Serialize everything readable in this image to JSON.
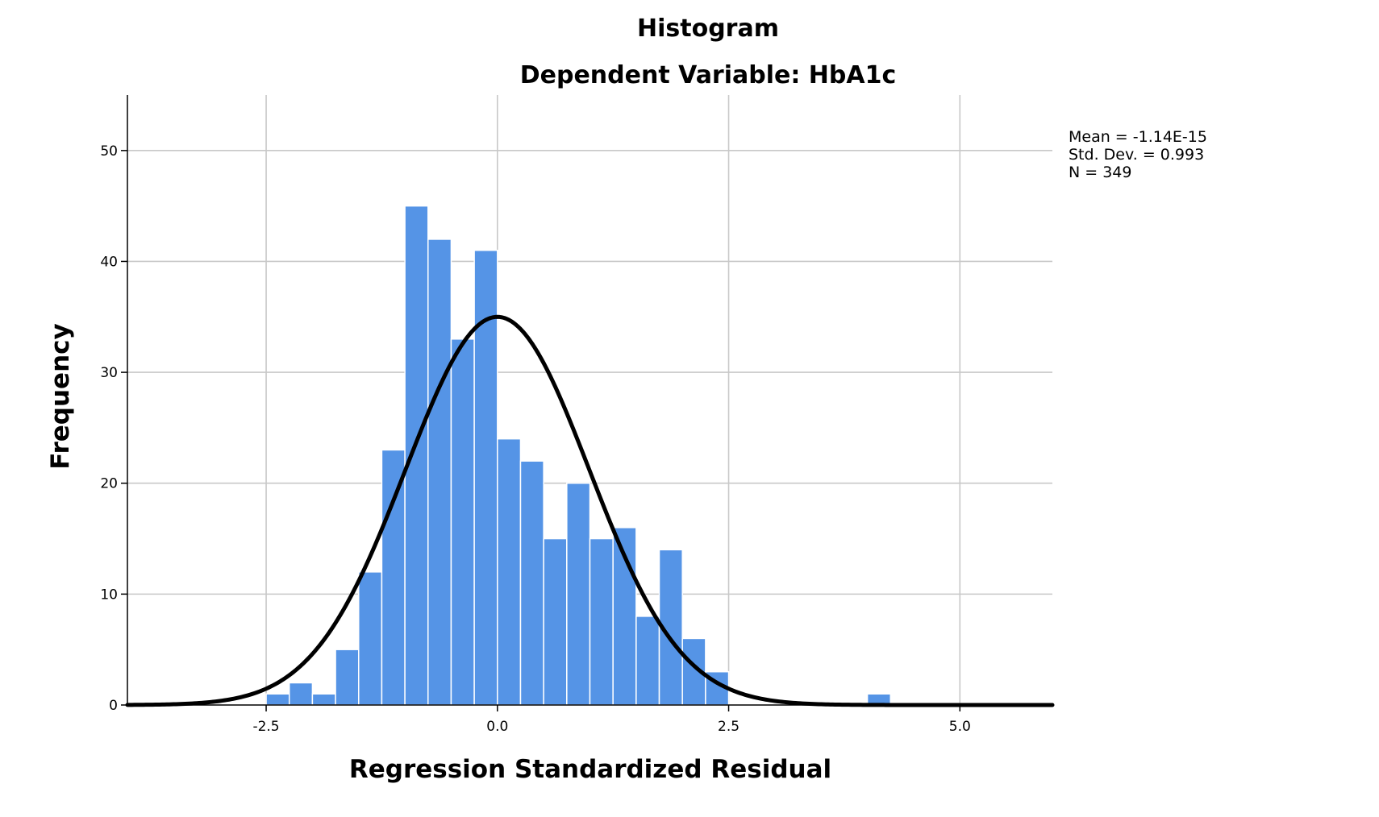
{
  "chart_data": {
    "type": "bar",
    "title": "Histogram",
    "subtitle": "Dependent Variable: HbA1c",
    "xlabel": "Regression Standardized Residual",
    "ylabel": "Frequency",
    "xlim": [
      -4.0,
      6.0
    ],
    "ylim": [
      0,
      55
    ],
    "x_ticks": [
      -2.5,
      0.0,
      2.5,
      5.0
    ],
    "x_tick_labels": [
      "-2.5",
      "0.0",
      "2.5",
      "5.0"
    ],
    "y_ticks": [
      0,
      10,
      20,
      30,
      40,
      50
    ],
    "y_tick_labels": [
      "0",
      "10",
      "20",
      "30",
      "40",
      "50"
    ],
    "grid": true,
    "bins": [
      {
        "from": -2.5,
        "to": -2.25,
        "count": 1
      },
      {
        "from": -2.25,
        "to": -2.0,
        "count": 2
      },
      {
        "from": -2.0,
        "to": -1.75,
        "count": 1
      },
      {
        "from": -1.75,
        "to": -1.5,
        "count": 5
      },
      {
        "from": -1.5,
        "to": -1.25,
        "count": 12
      },
      {
        "from": -1.25,
        "to": -1.0,
        "count": 23
      },
      {
        "from": -1.0,
        "to": -0.75,
        "count": 45
      },
      {
        "from": -0.75,
        "to": -0.5,
        "count": 42
      },
      {
        "from": -0.5,
        "to": -0.25,
        "count": 33
      },
      {
        "from": -0.25,
        "to": 0.0,
        "count": 41
      },
      {
        "from": 0.0,
        "to": 0.25,
        "count": 24
      },
      {
        "from": 0.25,
        "to": 0.5,
        "count": 22
      },
      {
        "from": 0.5,
        "to": 0.75,
        "count": 15
      },
      {
        "from": 0.75,
        "to": 1.0,
        "count": 20
      },
      {
        "from": 1.0,
        "to": 1.25,
        "count": 15
      },
      {
        "from": 1.25,
        "to": 1.5,
        "count": 16
      },
      {
        "from": 1.5,
        "to": 1.75,
        "count": 8
      },
      {
        "from": 1.75,
        "to": 2.0,
        "count": 14
      },
      {
        "from": 2.0,
        "to": 2.25,
        "count": 6
      },
      {
        "from": 2.25,
        "to": 2.5,
        "count": 3
      },
      {
        "from": 4.0,
        "to": 4.25,
        "count": 1
      }
    ],
    "normal_curve": {
      "mean": 0.0,
      "std": 0.993,
      "peak": 35
    },
    "stats_lines": [
      "Mean = -1.14E-15",
      "Std. Dev. = 0.993",
      "N = 349"
    ],
    "colors": {
      "bar": "#5594e6",
      "curve": "#000000",
      "grid": "#c8c8c8"
    }
  }
}
